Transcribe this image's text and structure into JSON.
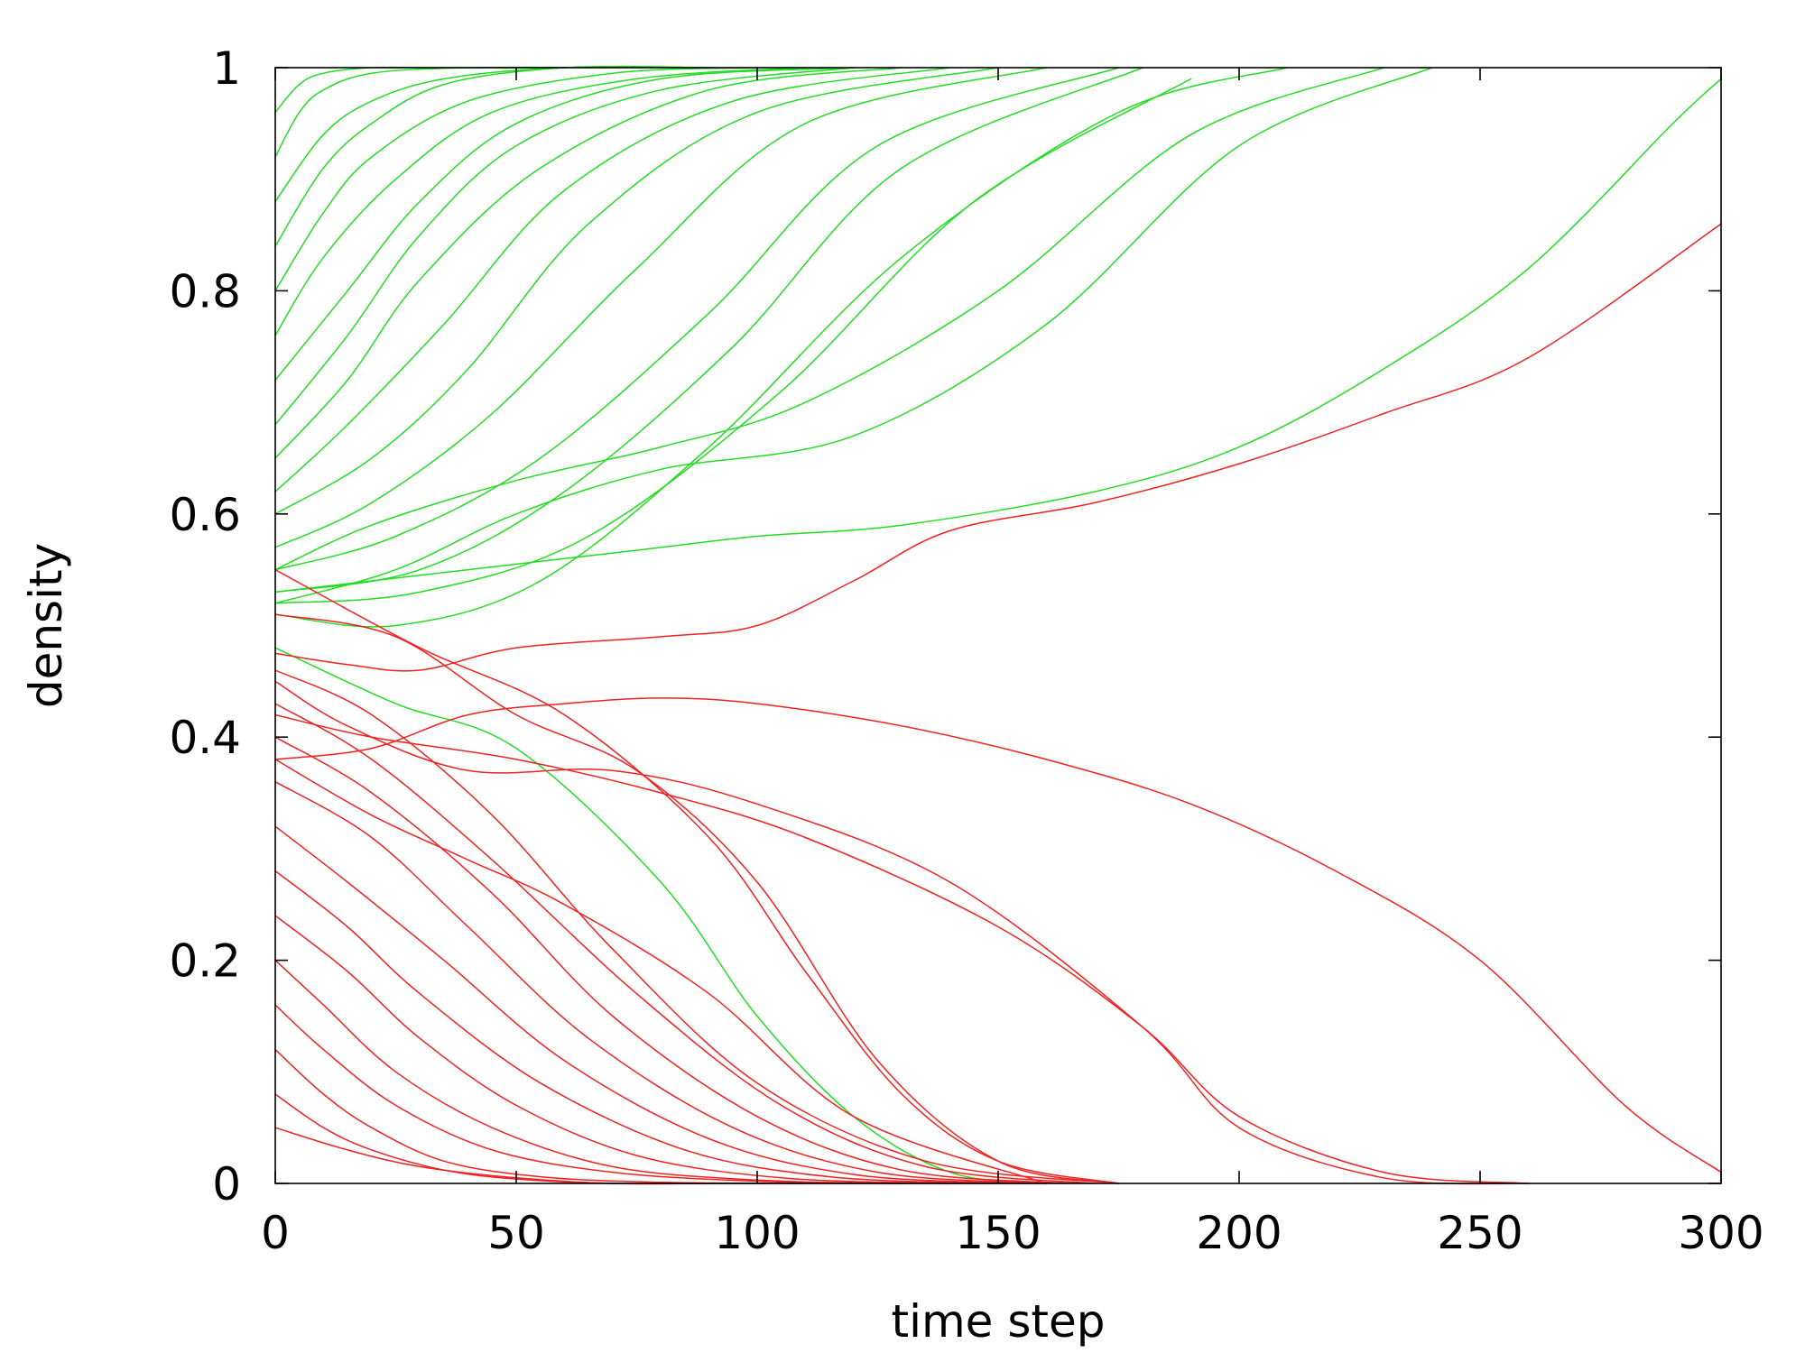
{
  "chart_data": {
    "type": "line",
    "title": "",
    "xlabel": "time step",
    "ylabel": "density",
    "xlim": [
      0,
      300
    ],
    "ylim": [
      0,
      1
    ],
    "xticks": [
      0,
      50,
      100,
      150,
      200,
      250,
      300
    ],
    "yticks": [
      0,
      0.2,
      0.4,
      0.6,
      0.8,
      1
    ],
    "xtick_labels": [
      "0",
      "50",
      "100",
      "150",
      "200",
      "250",
      "300"
    ],
    "ytick_labels": [
      "0",
      "0.2",
      "0.4",
      "0.6",
      "0.8",
      "1"
    ],
    "grid": false,
    "legend": "none",
    "colors": {
      "absorbing_at_1": "#22dd22",
      "absorbing_at_1_dark": "#0a4a0a",
      "absorbing_at_0": "#ee2222",
      "absorbing_at_0_dark": "#3a0505"
    },
    "series": [
      {
        "outcome": 1,
        "x": [
          0,
          5,
          10,
          20,
          35,
          60
        ],
        "y": [
          0.96,
          0.985,
          0.995,
          1,
          1,
          1
        ]
      },
      {
        "outcome": 1,
        "x": [
          0,
          5,
          10,
          20,
          40,
          70
        ],
        "y": [
          0.92,
          0.96,
          0.98,
          0.995,
          1,
          1
        ]
      },
      {
        "outcome": 1,
        "x": [
          0,
          10,
          20,
          35,
          60,
          90
        ],
        "y": [
          0.88,
          0.94,
          0.97,
          0.99,
          1,
          1
        ]
      },
      {
        "outcome": 1,
        "x": [
          0,
          10,
          20,
          35,
          60,
          90
        ],
        "y": [
          0.84,
          0.91,
          0.95,
          0.985,
          1,
          1
        ]
      },
      {
        "outcome": 1,
        "x": [
          0,
          10,
          20,
          40,
          70,
          100
        ],
        "y": [
          0.8,
          0.87,
          0.92,
          0.97,
          0.995,
          1
        ]
      },
      {
        "outcome": 1,
        "x": [
          0,
          10,
          25,
          45,
          75,
          110
        ],
        "y": [
          0.76,
          0.83,
          0.9,
          0.96,
          0.99,
          1
        ]
      },
      {
        "outcome": 1,
        "x": [
          0,
          15,
          30,
          50,
          80,
          120
        ],
        "y": [
          0.72,
          0.8,
          0.88,
          0.95,
          0.99,
          1
        ]
      },
      {
        "outcome": 1,
        "x": [
          0,
          15,
          30,
          50,
          80,
          120
        ],
        "y": [
          0.68,
          0.76,
          0.85,
          0.93,
          0.98,
          1
        ]
      },
      {
        "outcome": 1,
        "x": [
          0,
          15,
          30,
          55,
          90,
          130
        ],
        "y": [
          0.65,
          0.72,
          0.81,
          0.91,
          0.98,
          1
        ]
      },
      {
        "outcome": 1,
        "x": [
          0,
          15,
          35,
          60,
          95,
          140
        ],
        "y": [
          0.62,
          0.68,
          0.77,
          0.89,
          0.97,
          1
        ]
      },
      {
        "outcome": 1,
        "x": [
          0,
          20,
          40,
          65,
          100,
          150
        ],
        "y": [
          0.6,
          0.65,
          0.73,
          0.86,
          0.96,
          1
        ]
      },
      {
        "outcome": 1,
        "x": [
          0,
          20,
          45,
          75,
          110,
          160
        ],
        "y": [
          0.57,
          0.61,
          0.69,
          0.82,
          0.95,
          1
        ]
      },
      {
        "outcome": 1,
        "x": [
          0,
          25,
          55,
          90,
          125,
          175
        ],
        "y": [
          0.55,
          0.58,
          0.65,
          0.78,
          0.93,
          1
        ]
      },
      {
        "outcome": 1,
        "x": [
          0,
          30,
          60,
          95,
          130,
          180
        ],
        "y": [
          0.53,
          0.55,
          0.62,
          0.75,
          0.91,
          1
        ]
      },
      {
        "outcome": 1,
        "x": [
          0,
          30,
          65,
          105,
          145,
          190
        ],
        "y": [
          0.52,
          0.53,
          0.58,
          0.71,
          0.88,
          0.99
        ]
      },
      {
        "outcome": 1,
        "x": [
          0,
          25,
          55,
          90,
          130,
          175,
          210
        ],
        "y": [
          0.51,
          0.5,
          0.54,
          0.66,
          0.83,
          0.96,
          1
        ]
      },
      {
        "outcome": 1,
        "x": [
          0,
          20,
          50,
          80,
          110,
          150,
          190,
          230
        ],
        "y": [
          0.55,
          0.59,
          0.63,
          0.66,
          0.7,
          0.8,
          0.94,
          1
        ]
      },
      {
        "outcome": 1,
        "x": [
          0,
          25,
          50,
          80,
          120,
          160,
          200,
          240
        ],
        "y": [
          0.52,
          0.55,
          0.6,
          0.64,
          0.67,
          0.77,
          0.93,
          1
        ]
      },
      {
        "outcome": 1,
        "x": [
          0,
          20,
          40,
          60,
          80,
          100,
          130,
          170,
          200,
          230,
          260,
          290,
          300
        ],
        "y": [
          0.53,
          0.54,
          0.55,
          0.56,
          0.57,
          0.58,
          0.59,
          0.62,
          0.66,
          0.73,
          0.82,
          0.95,
          0.99
        ]
      },
      {
        "outcome": 0,
        "x": [
          0,
          25,
          50,
          75,
          100,
          125,
          150,
          175
        ],
        "y": [
          0.51,
          0.49,
          0.42,
          0.37,
          0.27,
          0.11,
          0.02,
          0
        ]
      },
      {
        "outcome": 0,
        "x": [
          0,
          30,
          60,
          90,
          110,
          130,
          150,
          175
        ],
        "y": [
          0.55,
          0.48,
          0.42,
          0.31,
          0.19,
          0.08,
          0.02,
          0
        ]
      },
      {
        "outcome": 1,
        "x": [
          0,
          25,
          50,
          80,
          100,
          120,
          140,
          160
        ],
        "y": [
          0.48,
          0.43,
          0.39,
          0.27,
          0.15,
          0.06,
          0.01,
          0
        ]
      },
      {
        "outcome": 0,
        "x": [
          0,
          15,
          30,
          50,
          70,
          90,
          110,
          130,
          160
        ],
        "y": [
          0.05,
          0.03,
          0.015,
          0.005,
          0,
          0,
          0,
          0,
          0
        ]
      },
      {
        "outcome": 0,
        "x": [
          0,
          10,
          20,
          35,
          50,
          70,
          90
        ],
        "y": [
          0.08,
          0.05,
          0.03,
          0.012,
          0.004,
          0,
          0
        ]
      },
      {
        "outcome": 0,
        "x": [
          0,
          10,
          20,
          35,
          55,
          80,
          110
        ],
        "y": [
          0.12,
          0.08,
          0.05,
          0.02,
          0.006,
          0.001,
          0
        ]
      },
      {
        "outcome": 0,
        "x": [
          0,
          10,
          25,
          45,
          70,
          100,
          130
        ],
        "y": [
          0.16,
          0.12,
          0.07,
          0.03,
          0.01,
          0.002,
          0
        ]
      },
      {
        "outcome": 0,
        "x": [
          0,
          10,
          25,
          45,
          70,
          100,
          130
        ],
        "y": [
          0.2,
          0.16,
          0.1,
          0.05,
          0.015,
          0.003,
          0
        ]
      },
      {
        "outcome": 0,
        "x": [
          0,
          15,
          30,
          50,
          75,
          105,
          140
        ],
        "y": [
          0.24,
          0.19,
          0.13,
          0.07,
          0.025,
          0.005,
          0
        ]
      },
      {
        "outcome": 0,
        "x": [
          0,
          15,
          30,
          55,
          85,
          115,
          150
        ],
        "y": [
          0.28,
          0.23,
          0.17,
          0.09,
          0.03,
          0.006,
          0
        ]
      },
      {
        "outcome": 0,
        "x": [
          0,
          15,
          35,
          60,
          90,
          120,
          155
        ],
        "y": [
          0.32,
          0.27,
          0.2,
          0.11,
          0.04,
          0.008,
          0
        ]
      },
      {
        "outcome": 0,
        "x": [
          0,
          20,
          40,
          65,
          95,
          125,
          160
        ],
        "y": [
          0.36,
          0.31,
          0.23,
          0.13,
          0.05,
          0.01,
          0
        ]
      },
      {
        "outcome": 0,
        "x": [
          0,
          20,
          45,
          70,
          100,
          130,
          165
        ],
        "y": [
          0.4,
          0.35,
          0.26,
          0.15,
          0.06,
          0.012,
          0
        ]
      },
      {
        "outcome": 0,
        "x": [
          0,
          20,
          45,
          75,
          105,
          135,
          170
        ],
        "y": [
          0.43,
          0.38,
          0.29,
          0.17,
          0.07,
          0.015,
          0
        ]
      },
      {
        "outcome": 0,
        "x": [
          0,
          20,
          45,
          70,
          100,
          135,
          175
        ],
        "y": [
          0.46,
          0.42,
          0.33,
          0.21,
          0.09,
          0.02,
          0
        ]
      },
      {
        "outcome": 0,
        "x": [
          0,
          20,
          40,
          60,
          90,
          120,
          160
        ],
        "y": [
          0.38,
          0.33,
          0.29,
          0.25,
          0.17,
          0.06,
          0
        ]
      },
      {
        "outcome": 0,
        "x": [
          0,
          15,
          40,
          70,
          100,
          140,
          180,
          200,
          230,
          260
        ],
        "y": [
          0.45,
          0.41,
          0.37,
          0.37,
          0.34,
          0.27,
          0.14,
          0.05,
          0.005,
          0
        ]
      },
      {
        "outcome": 0,
        "x": [
          0,
          20,
          50,
          80,
          110,
          150,
          180,
          200,
          230,
          260
        ],
        "y": [
          0.42,
          0.4,
          0.38,
          0.35,
          0.31,
          0.23,
          0.14,
          0.06,
          0.01,
          0
        ]
      },
      {
        "outcome": 0,
        "x": [
          0,
          20,
          40,
          60,
          80,
          100,
          130,
          160,
          190,
          220,
          250,
          280,
          300
        ],
        "y": [
          0.38,
          0.39,
          0.42,
          0.43,
          0.435,
          0.43,
          0.41,
          0.38,
          0.34,
          0.28,
          0.2,
          0.07,
          0.01
        ]
      },
      {
        "outcome": 0,
        "x": [
          0,
          15,
          30,
          50,
          80,
          100,
          120,
          140,
          170,
          200,
          230,
          260,
          300
        ],
        "y": [
          0.475,
          0.465,
          0.46,
          0.48,
          0.49,
          0.5,
          0.54,
          0.585,
          0.61,
          0.645,
          0.69,
          0.74,
          0.86
        ]
      }
    ]
  }
}
